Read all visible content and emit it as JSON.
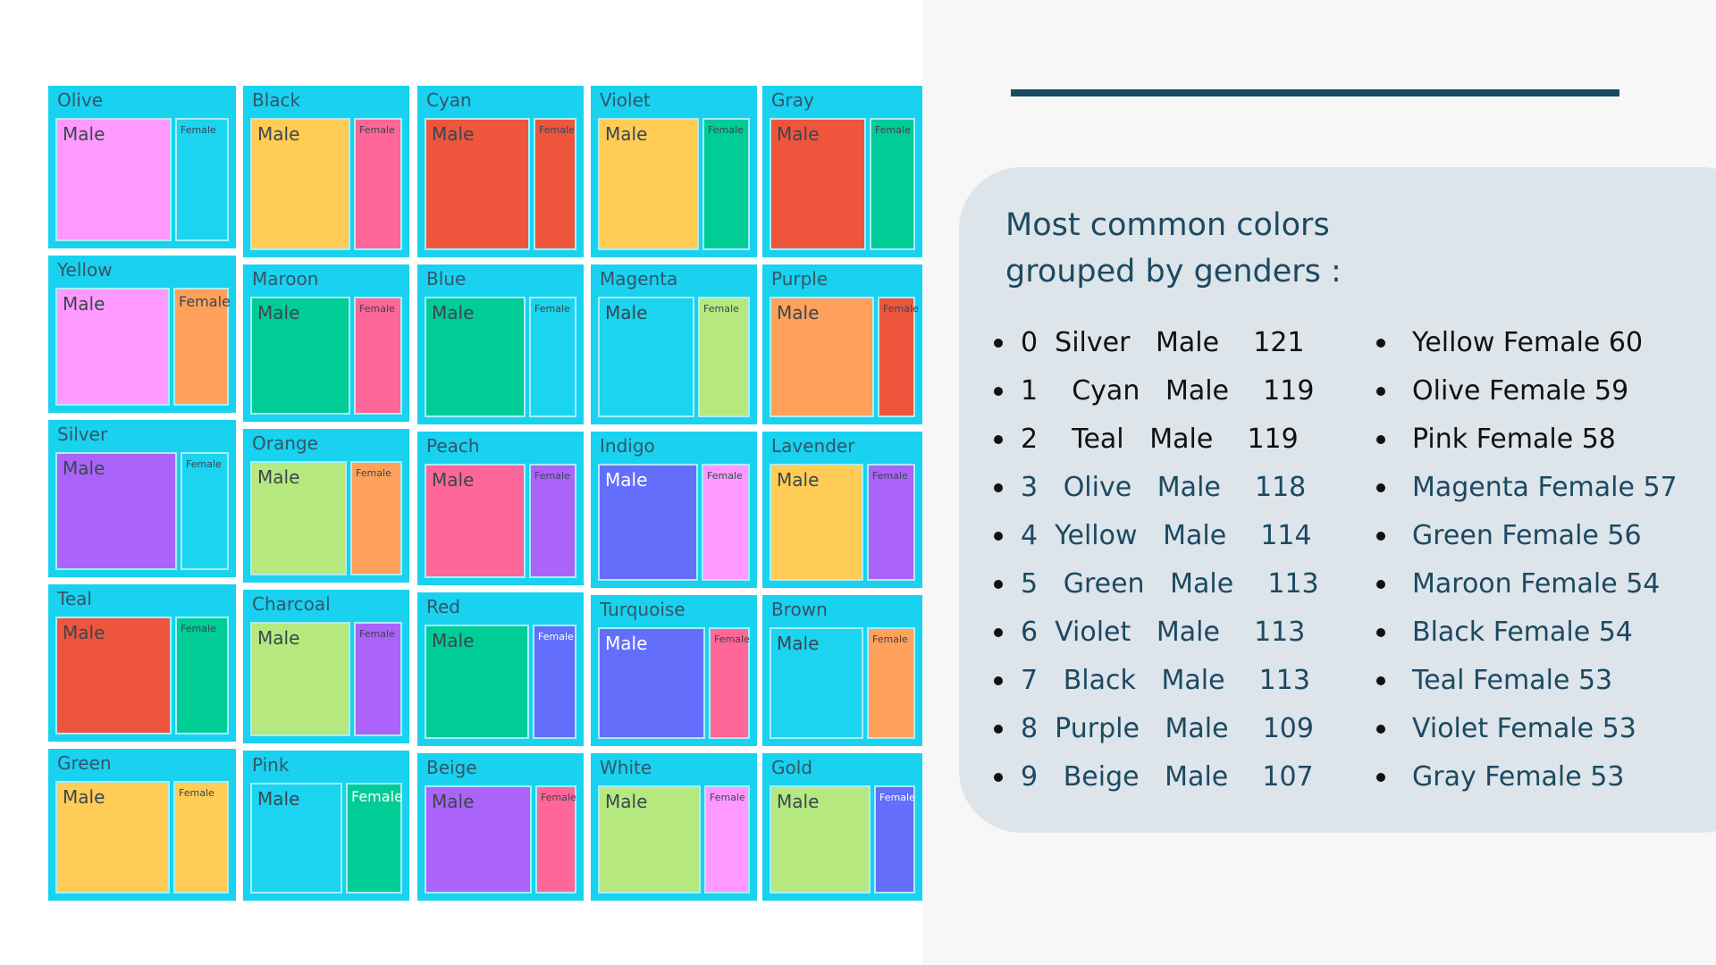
{
  "slide": {
    "title_line1": "Most common colors",
    "title_line2": "grouped by genders :"
  },
  "male_list": [
    {
      "index": "0",
      "color": "Silver",
      "gender": "Male",
      "count": "121",
      "text": "0  Silver   Male    121"
    },
    {
      "index": "1",
      "color": "Cyan",
      "gender": "Male",
      "count": "119",
      "text": "1    Cyan   Male    119"
    },
    {
      "index": "2",
      "color": "Teal",
      "gender": "Male",
      "count": "119",
      "text": "2    Teal   Male    119"
    },
    {
      "index": "3",
      "color": "Olive",
      "gender": "Male",
      "count": "118",
      "text": "3   Olive   Male    118"
    },
    {
      "index": "4",
      "color": "Yellow",
      "gender": "Male",
      "count": "114",
      "text": "4  Yellow   Male    114"
    },
    {
      "index": "5",
      "color": "Green",
      "gender": "Male",
      "count": "113",
      "text": "5   Green   Male    113"
    },
    {
      "index": "6",
      "color": "Violet",
      "gender": "Male",
      "count": "113",
      "text": "6  Violet   Male    113"
    },
    {
      "index": "7",
      "color": "Black",
      "gender": "Male",
      "count": "113",
      "text": "7   Black   Male    113"
    },
    {
      "index": "8",
      "color": "Purple",
      "gender": "Male",
      "count": "109",
      "text": "8  Purple   Male    109"
    },
    {
      "index": "9",
      "color": "Beige",
      "gender": "Male",
      "count": "107",
      "text": "9   Beige   Male    107"
    }
  ],
  "female_list": [
    {
      "color": "Yellow",
      "gender": "Female",
      "count": "60",
      "text": "Yellow Female 60"
    },
    {
      "color": "Olive",
      "gender": "Female",
      "count": "59",
      "text": "Olive Female 59"
    },
    {
      "color": "Pink",
      "gender": "Female",
      "count": "58",
      "text": "Pink Female 58"
    },
    {
      "color": "Magenta",
      "gender": "Female",
      "count": "57",
      "text": "Magenta Female 57"
    },
    {
      "color": "Green",
      "gender": "Female",
      "count": "56",
      "text": "Green Female 56"
    },
    {
      "color": "Maroon",
      "gender": "Female",
      "count": "54",
      "text": "Maroon Female 54"
    },
    {
      "color": "Black",
      "gender": "Female",
      "count": "54",
      "text": "Black Female 54"
    },
    {
      "color": "Teal",
      "gender": "Female",
      "count": "53",
      "text": "Teal Female 53"
    },
    {
      "color": "Violet",
      "gender": "Female",
      "count": "53",
      "text": "Violet Female 53"
    },
    {
      "color": "Gray",
      "gender": "Female",
      "count": "53",
      "text": "Gray Female 53"
    }
  ],
  "chart_data": {
    "type": "treemap",
    "title": "",
    "groups": [
      {
        "name": "Olive",
        "male_color": "#ff99ff",
        "female_color": "#1ad4f0"
      },
      {
        "name": "Black",
        "male_color": "#ffcc55",
        "female_color": "#ff6699"
      },
      {
        "name": "Cyan",
        "male_color": "#ee553d",
        "female_color": "#ee553d"
      },
      {
        "name": "Violet",
        "male_color": "#ffcc55",
        "female_color": "#00cc96"
      },
      {
        "name": "Gray",
        "male_color": "#ee553d",
        "female_color": "#00cc96"
      },
      {
        "name": "Yellow",
        "male_color": "#ff99ff",
        "female_color": "#ffa15a"
      },
      {
        "name": "Maroon",
        "male_color": "#00cc96",
        "female_color": "#ff6699"
      },
      {
        "name": "Blue",
        "male_color": "#00cc96",
        "female_color": "#1ad4f0"
      },
      {
        "name": "Magenta",
        "male_color": "#1ad4f0",
        "female_color": "#b6e880"
      },
      {
        "name": "Purple",
        "male_color": "#ffa15a",
        "female_color": "#ee553d"
      },
      {
        "name": "Silver",
        "male_color": "#ab63fa",
        "female_color": "#1ad4f0"
      },
      {
        "name": "Orange",
        "male_color": "#b6e880",
        "female_color": "#ffa15a"
      },
      {
        "name": "Peach",
        "male_color": "#ff6699",
        "female_color": "#ab63fa"
      },
      {
        "name": "Indigo",
        "male_color": "#636efa",
        "female_color": "#ff99ff"
      },
      {
        "name": "Lavender",
        "male_color": "#ffcc55",
        "female_color": "#ab63fa"
      },
      {
        "name": "Teal",
        "male_color": "#ee553d",
        "female_color": "#00cc96"
      },
      {
        "name": "Charcoal",
        "male_color": "#b6e880",
        "female_color": "#ab63fa"
      },
      {
        "name": "Red",
        "male_color": "#00cc96",
        "female_color": "#636efa"
      },
      {
        "name": "Turquoise",
        "male_color": "#636efa",
        "female_color": "#ff6699"
      },
      {
        "name": "Brown",
        "male_color": "#1ad4f0",
        "female_color": "#ffa15a"
      },
      {
        "name": "Green",
        "male_color": "#ffcc55",
        "female_color": "#ffcc55"
      },
      {
        "name": "Pink",
        "male_color": "#1ad4f0",
        "female_color": "#00cc96"
      },
      {
        "name": "Beige",
        "male_color": "#ab63fa",
        "female_color": "#ff6699"
      },
      {
        "name": "White",
        "male_color": "#b6e880",
        "female_color": "#ff99ff"
      },
      {
        "name": "Gold",
        "male_color": "#b6e880",
        "female_color": "#636efa"
      }
    ],
    "male_label": "Male",
    "female_label": "Female"
  }
}
